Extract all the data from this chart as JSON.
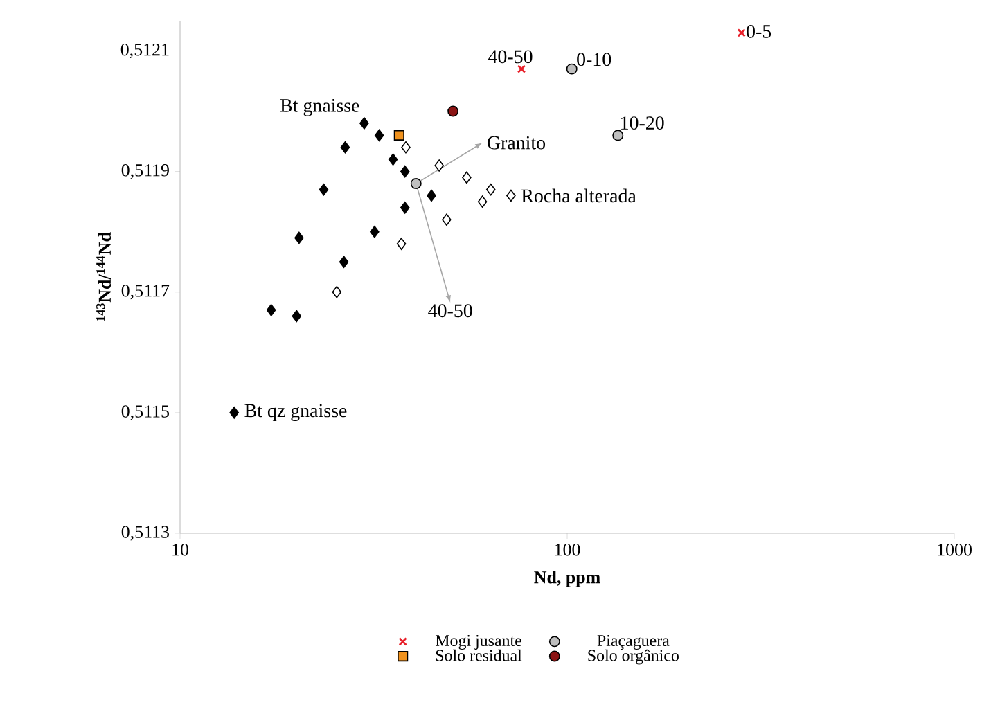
{
  "chart_data": {
    "type": "scatter",
    "xlabel": "Nd, ppm",
    "ylabel": "$^{143}$Nd/$^{144}$Nd",
    "log": "x",
    "xlim": [
      10,
      1000
    ],
    "xticks": [
      10,
      100,
      1000
    ],
    "ylim": [
      0.5113,
      0.51215
    ],
    "yticks": [
      {
        "value": 0.5113,
        "label": "0,5113"
      },
      {
        "value": 0.5115,
        "label": "0,5115"
      },
      {
        "value": 0.5117,
        "label": "0,5117"
      },
      {
        "value": 0.5119,
        "label": "0,5119"
      },
      {
        "value": 0.5121,
        "label": "0,5121"
      }
    ],
    "legend": "bottom",
    "grid": false,
    "series": [
      {
        "color": "#000000",
        "marker": "diamond",
        "x": [
          29.9,
          32.7,
          26.7,
          35.5,
          38.1,
          23.5,
          44.6,
          38.1,
          31.8,
          20.3,
          26.5,
          17.2,
          20.0,
          13.8
        ],
        "values": [
          0.51198,
          0.51196,
          0.51194,
          0.51192,
          0.5119,
          0.51187,
          0.51186,
          0.51184,
          0.5118,
          0.51179,
          0.51175,
          0.51167,
          0.51166,
          0.5115
        ]
      },
      {
        "color": "#ffffff",
        "marker": "diamond",
        "x": [
          38.3,
          46.7,
          55.0,
          63.5,
          71.6,
          60.4,
          48.8,
          37.3,
          25.4
        ],
        "values": [
          0.51194,
          0.51191,
          0.51189,
          0.51187,
          0.51186,
          0.51185,
          0.51182,
          0.51178,
          0.5117
        ]
      },
      {
        "name": "Mogi jusante",
        "color": "#e8202a",
        "marker": "cross",
        "x": [
          76.2,
          282
        ],
        "values": [
          0.51207,
          0.51213
        ]
      },
      {
        "name": "Piaçaguera",
        "color": "#bfbfbf",
        "marker": "circle",
        "x": [
          40.7,
          102.8,
          135.2
        ],
        "values": [
          0.51188,
          0.51207,
          0.51196
        ]
      },
      {
        "name": "Solo residual",
        "color": "#f0921e",
        "marker": "square",
        "x": [
          36.8
        ],
        "values": [
          0.51196
        ]
      },
      {
        "name": "Solo orgânico",
        "color": "#8b1414",
        "marker": "circle",
        "x": [
          50.7
        ],
        "values": [
          0.512
        ]
      }
    ],
    "annotations": [
      {
        "text": "Bt gnaisse",
        "x": 29.9,
        "y": 0.51198
      },
      {
        "text": "40-50",
        "x": 76.2,
        "y": 0.51207
      },
      {
        "text": "0-10",
        "x": 102.8,
        "y": 0.51207
      },
      {
        "text": "10-20",
        "x": 135.2,
        "y": 0.51196
      },
      {
        "text": "0-5",
        "x": 282,
        "y": 0.51213
      },
      "Granito",
      {
        "text": "Rocha alterada",
        "x": 71.6,
        "y": 0.51186
      },
      "40-50",
      {
        "text": "Bt qz gnaisse",
        "x": 13.8,
        "y": 0.5115
      }
    ]
  }
}
